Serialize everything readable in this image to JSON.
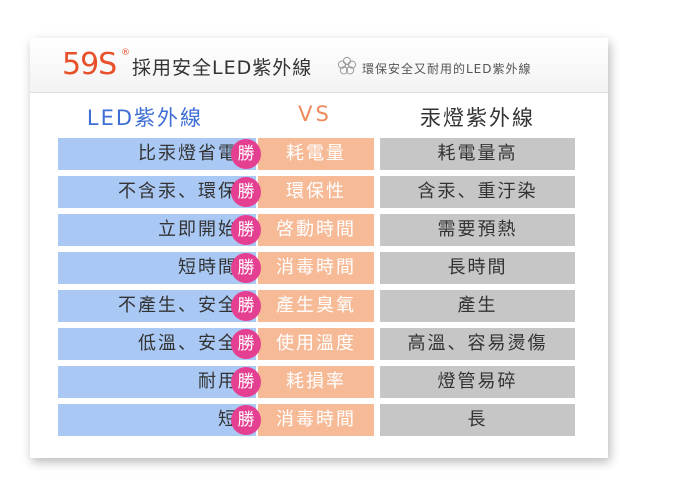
{
  "header": {
    "brand": "59S",
    "brand_mark": "®",
    "title": "採用安全LED紫外線",
    "subtitle": "環保安全又耐用的LED紫外線",
    "icon": "flower-icon"
  },
  "columns": {
    "left": "LED紫外線",
    "vs": "VS",
    "right": "汞燈紫外線"
  },
  "badge_label": "勝",
  "rows": [
    {
      "led": "比汞燈省電",
      "item": "耗電量",
      "mercury": "耗電量高"
    },
    {
      "led": "不含汞、環保",
      "item": "環保性",
      "mercury": "含汞、重汙染"
    },
    {
      "led": "立即開始",
      "item": "啓動時間",
      "mercury": "需要預熱"
    },
    {
      "led": "短時間",
      "item": "消毒時間",
      "mercury": "長時間"
    },
    {
      "led": "不產生、安全",
      "item": "產生臭氧",
      "mercury": "產生"
    },
    {
      "led": "低溫、安全",
      "item": "使用溫度",
      "mercury": "高溫、容易燙傷"
    },
    {
      "led": "耐用",
      "item": "耗損率",
      "mercury": "燈管易碎"
    },
    {
      "led": "短",
      "item": "消毒時間",
      "mercury": "長"
    }
  ],
  "colors": {
    "led_cell": "#aac8f4",
    "item_cell": "#f6ba97",
    "mercury_cell": "#c6c6c6",
    "badge": "#e53f92",
    "brand": "#e8502a"
  }
}
